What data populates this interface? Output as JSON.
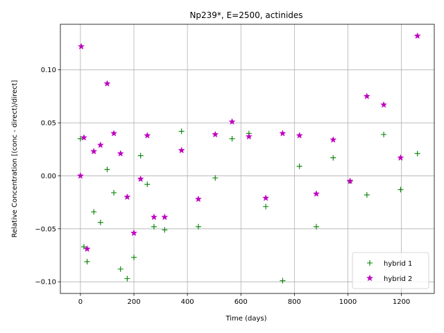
{
  "chart_data": {
    "type": "scatter",
    "title": "Np239*, E=2500, actinides",
    "xlabel": "Time (days)",
    "ylabel": "Relative Concentration [(conc - direct)/direct]",
    "xlim": [
      -75,
      1323
    ],
    "ylim": [
      -0.111,
      0.143
    ],
    "xticks": [
      0,
      200,
      400,
      600,
      800,
      1000,
      1200
    ],
    "xtick_labels": [
      "0",
      "200",
      "400",
      "600",
      "800",
      "1000",
      "1200"
    ],
    "yticks": [
      -0.1,
      -0.05,
      0.0,
      0.05,
      0.1
    ],
    "ytick_labels": [
      "−0.10",
      "−0.05",
      "0.00",
      "0.05",
      "0.10"
    ],
    "grid": true,
    "legend_position": "lower-right",
    "series": [
      {
        "name": "hybrid 1",
        "marker": "plus",
        "color": "#008000",
        "x": [
          0,
          13,
          25,
          50,
          75,
          100,
          125,
          150,
          175,
          200,
          225,
          250,
          275,
          315,
          378,
          441,
          504,
          567,
          630,
          693,
          756,
          819,
          882,
          945,
          1008,
          1071,
          1134,
          1197,
          1260
        ],
        "y": [
          0.035,
          -0.067,
          -0.081,
          -0.034,
          -0.044,
          0.006,
          -0.016,
          -0.088,
          -0.097,
          -0.077,
          0.019,
          -0.008,
          -0.048,
          -0.051,
          0.042,
          -0.048,
          -0.002,
          0.035,
          0.04,
          -0.029,
          -0.099,
          0.009,
          -0.048,
          0.017,
          -0.005,
          -0.018,
          0.039,
          -0.013,
          0.021
        ]
      },
      {
        "name": "hybrid 2",
        "marker": "star",
        "color": "#bf00bf",
        "x": [
          0,
          3,
          13,
          25,
          50,
          75,
          100,
          125,
          150,
          175,
          200,
          225,
          250,
          275,
          315,
          378,
          441,
          504,
          567,
          630,
          693,
          756,
          819,
          882,
          945,
          1008,
          1071,
          1134,
          1197,
          1260
        ],
        "y": [
          0.0,
          0.122,
          0.036,
          -0.069,
          0.023,
          0.029,
          0.087,
          0.04,
          0.021,
          -0.02,
          -0.054,
          -0.003,
          0.038,
          -0.039,
          -0.039,
          0.024,
          -0.022,
          0.039,
          0.051,
          0.037,
          -0.021,
          0.04,
          0.038,
          -0.017,
          0.034,
          -0.005,
          0.075,
          0.067,
          0.017,
          0.132
        ]
      }
    ]
  }
}
